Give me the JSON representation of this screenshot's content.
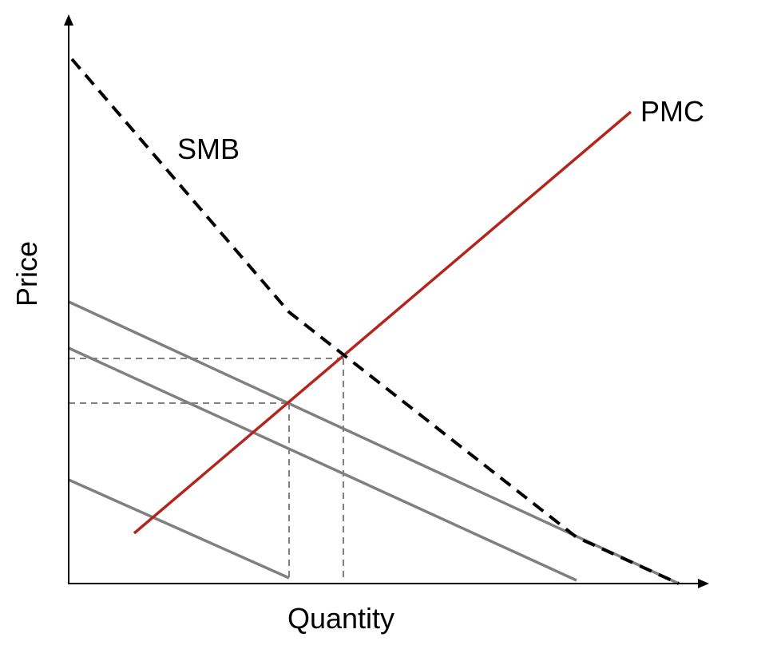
{
  "diagram": {
    "axes": {
      "x_label": "Quantity",
      "y_label": "Price"
    },
    "curves": {
      "smb": {
        "label": "SMB",
        "style": "dashed"
      },
      "pmc": {
        "label": "PMC",
        "style": "solid"
      },
      "private_benefit_curves": 3
    },
    "guides": {
      "horizontal": 2,
      "vertical": 2,
      "style": "dashed"
    },
    "colors": {
      "axis": "#000000",
      "smb": "#000000",
      "pmc": "#b3261e",
      "private_benefit": "#808080",
      "guide": "#808080"
    }
  }
}
